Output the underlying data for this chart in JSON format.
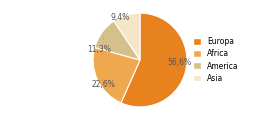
{
  "labels": [
    "Europa",
    "Africa",
    "America",
    "Asia"
  ],
  "values": [
    56.6,
    22.6,
    11.3,
    9.4
  ],
  "colors": [
    "#e8821e",
    "#f0a84e",
    "#d4c08a",
    "#f5e6c8"
  ],
  "pct_labels": [
    "56,6%",
    "22,6%",
    "11,3%",
    "9,4%"
  ],
  "legend_labels": [
    "Europa",
    "Africa",
    "America",
    "Asia"
  ],
  "startangle": 90,
  "figsize": [
    2.8,
    1.2
  ],
  "dpi": 100
}
